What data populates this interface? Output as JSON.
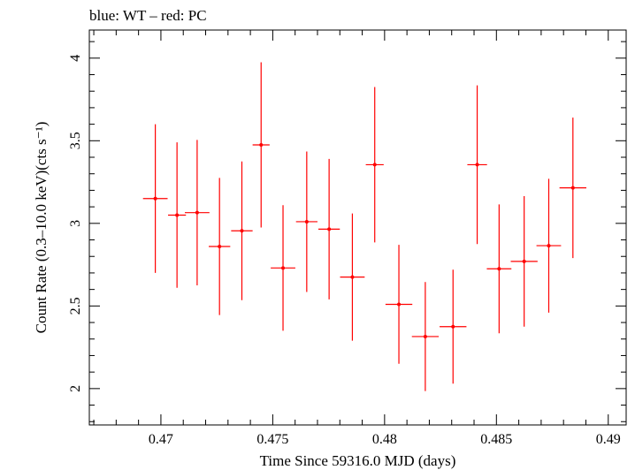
{
  "chart_data": {
    "type": "scatter",
    "title": "blue: WT – red: PC",
    "xlabel": "Time Since 59316.0 MJD (days)",
    "ylabel": "Count Rate (0.3–10.0 keV)(cts s⁻¹)",
    "xlim": [
      0.4668,
      0.4908
    ],
    "ylim": [
      1.78,
      4.17
    ],
    "x_ticks": [
      0.47,
      0.475,
      0.48,
      0.485,
      0.49
    ],
    "x_tick_labels": [
      "0.47",
      "0.475",
      "0.48",
      "0.485",
      "0.49"
    ],
    "y_ticks": [
      2,
      2.5,
      3,
      3.5,
      4
    ],
    "y_tick_labels": [
      "2",
      "2.5",
      "3",
      "3.5",
      "4"
    ],
    "x_minor_step": 0.001,
    "y_minor_step": 0.1,
    "grid": false,
    "series": [
      {
        "color": "#ff0000",
        "points": [
          {
            "x": 0.46975,
            "xerr": 0.00055,
            "y": 3.15,
            "yerr": 0.45
          },
          {
            "x": 0.47072,
            "xerr": 0.0004,
            "y": 3.05,
            "yerr": 0.44
          },
          {
            "x": 0.47162,
            "xerr": 0.00055,
            "y": 3.065,
            "yerr": 0.44
          },
          {
            "x": 0.47262,
            "xerr": 0.00048,
            "y": 2.86,
            "yerr": 0.415
          },
          {
            "x": 0.47362,
            "xerr": 0.00048,
            "y": 2.955,
            "yerr": 0.42
          },
          {
            "x": 0.47448,
            "xerr": 0.00038,
            "y": 3.475,
            "yerr": 0.5
          },
          {
            "x": 0.47546,
            "xerr": 0.00055,
            "y": 2.73,
            "yerr": 0.38
          },
          {
            "x": 0.47652,
            "xerr": 0.00048,
            "y": 3.01,
            "yerr": 0.425
          },
          {
            "x": 0.47752,
            "xerr": 0.00048,
            "y": 2.965,
            "yerr": 0.425
          },
          {
            "x": 0.47856,
            "xerr": 0.00055,
            "y": 2.675,
            "yerr": 0.385
          },
          {
            "x": 0.47956,
            "xerr": 0.0004,
            "y": 3.355,
            "yerr": 0.47
          },
          {
            "x": 0.48064,
            "xerr": 0.0006,
            "y": 2.51,
            "yerr": 0.36
          },
          {
            "x": 0.48182,
            "xerr": 0.0006,
            "y": 2.315,
            "yerr": 0.33
          },
          {
            "x": 0.48306,
            "xerr": 0.0006,
            "y": 2.375,
            "yerr": 0.345
          },
          {
            "x": 0.48414,
            "xerr": 0.00044,
            "y": 3.355,
            "yerr": 0.48
          },
          {
            "x": 0.48512,
            "xerr": 0.00055,
            "y": 2.725,
            "yerr": 0.39
          },
          {
            "x": 0.48624,
            "xerr": 0.0006,
            "y": 2.77,
            "yerr": 0.395
          },
          {
            "x": 0.48734,
            "xerr": 0.00055,
            "y": 2.865,
            "yerr": 0.405
          },
          {
            "x": 0.48842,
            "xerr": 0.0006,
            "y": 3.215,
            "yerr": 0.425
          }
        ]
      }
    ]
  }
}
